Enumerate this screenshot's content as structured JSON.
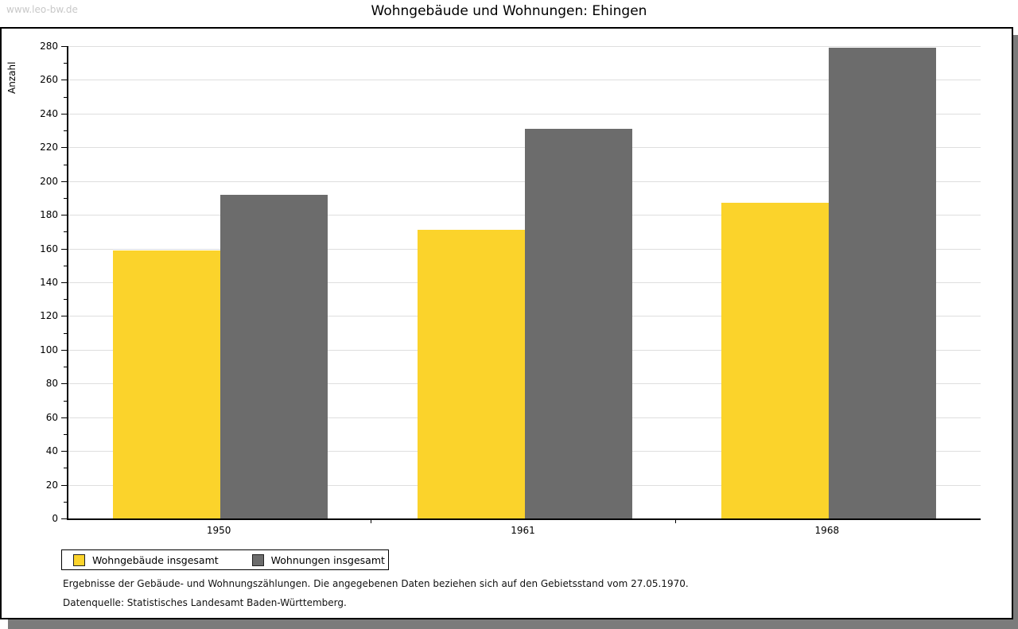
{
  "watermark": "www.leo-bw.de",
  "title": "Wohngebäude und Wohnungen: Ehingen",
  "chart_data": {
    "type": "bar",
    "categories": [
      "1950",
      "1961",
      "1968"
    ],
    "series": [
      {
        "name": "Wohngebäude insgesamt",
        "color": "#fbd32b",
        "values": [
          159,
          171,
          187
        ]
      },
      {
        "name": "Wohnungen insgesamt",
        "color": "#6c6c6c",
        "values": [
          192,
          231,
          279
        ]
      }
    ],
    "title": "Wohngebäude und Wohnungen: Ehingen",
    "xlabel": "",
    "ylabel": "Anzahl",
    "ylim": [
      0,
      280
    ],
    "ytick_step": 20,
    "yminor_step": 10,
    "grid": true,
    "legend_position": "bottom-left"
  },
  "footer": {
    "line1": "Ergebnisse der Gebäude- und Wohnungszählungen. Die angegebenen Daten beziehen sich auf den Gebietsstand vom 27.05.1970.",
    "line2": "Datenquelle: Statistisches Landesamt Baden-Württemberg."
  },
  "colors": {
    "bar_yellow": "#fbd32b",
    "bar_gray": "#6c6c6c",
    "gridline": "#dedede",
    "axis": "#000000",
    "watermark": "#c8c8c8",
    "shadow": "#7b7b7b",
    "background": "#ffffff"
  }
}
